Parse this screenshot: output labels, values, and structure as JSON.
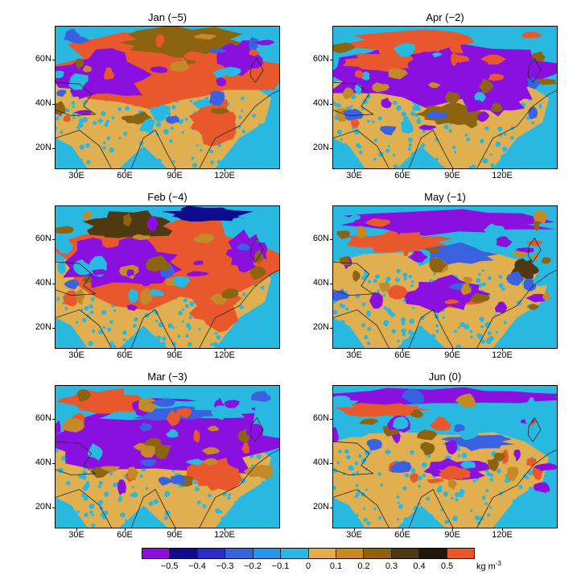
{
  "panels": [
    {
      "title": "Jan (−5)",
      "pattern": "jan"
    },
    {
      "title": "Apr (−2)",
      "pattern": "apr"
    },
    {
      "title": "Feb (−4)",
      "pattern": "feb"
    },
    {
      "title": "May (−1)",
      "pattern": "may"
    },
    {
      "title": "Mar (−3)",
      "pattern": "mar"
    },
    {
      "title": "Jun (0)",
      "pattern": "jun"
    }
  ],
  "lat_labels": [
    "60N",
    "40N",
    "20N"
  ],
  "lon_labels": [
    "30E",
    "60E",
    "90E",
    "120E"
  ],
  "colorbar": {
    "labels": [
      "−0.5",
      "−0.4",
      "−0.3",
      "−0.2",
      "−0.1",
      "0",
      "0.1",
      "0.2",
      "0.3",
      "0.4",
      "0.5"
    ],
    "colors": [
      "#8a10e0",
      "#0c0c8c",
      "#2c2cc8",
      "#3a62e0",
      "#2a94e8",
      "#28b8e0",
      "#e0b050",
      "#c48a28",
      "#8c6410",
      "#503810",
      "#201808",
      "#e8582c"
    ],
    "unit": "kg m",
    "unit_exp": "-3"
  }
}
